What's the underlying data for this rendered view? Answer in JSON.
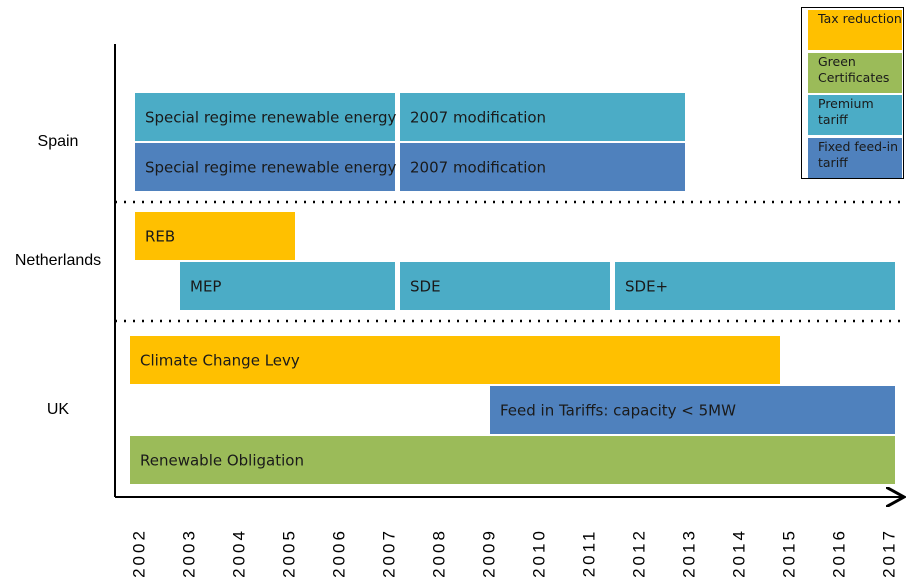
{
  "chart_data": {
    "type": "timeline",
    "series": [
      {
        "name": "Tax reduction",
        "color": "#ffc000"
      },
      {
        "name": "Green Certificates",
        "color": "#9bbb59"
      },
      {
        "name": "Premium tariff",
        "color": "#4bacc6"
      },
      {
        "name": "Fixed feed-in tariff",
        "color": "#4f81bd"
      }
    ],
    "categories": [
      {
        "name": "Spain",
        "lanes": [
          [
            {
              "label": "Special regime renewable energy",
              "series": 2,
              "start": 2001.9,
              "end": 2007.1
            },
            {
              "label": "2007 modification",
              "series": 2,
              "start": 2007.2,
              "end": 2012.9
            }
          ],
          [
            {
              "label": "Special regime renewable energy",
              "series": 3,
              "start": 2001.9,
              "end": 2007.1
            },
            {
              "label": "2007 modification",
              "series": 3,
              "start": 2007.2,
              "end": 2012.9
            }
          ]
        ]
      },
      {
        "name": "Netherlands",
        "lanes": [
          [
            {
              "label": "REB",
              "series": 0,
              "start": 2001.9,
              "end": 2005.1
            }
          ],
          [
            {
              "label": "MEP",
              "series": 2,
              "start": 2002.8,
              "end": 2007.1
            },
            {
              "label": "SDE",
              "series": 2,
              "start": 2007.2,
              "end": 2011.4
            },
            {
              "label": "SDE+",
              "series": 2,
              "start": 2011.5,
              "end": 2017.1
            }
          ]
        ]
      },
      {
        "name": "UK",
        "lanes": [
          [
            {
              "label": "Climate Change Levy",
              "series": 0,
              "start": 2001.8,
              "end": 2014.8
            }
          ],
          [
            {
              "label": "Feed in Tariffs: capacity < 5MW",
              "series": 3,
              "start": 2009.0,
              "end": 2017.1
            }
          ],
          [
            {
              "label": "Renewable Obligation",
              "series": 1,
              "start": 2001.8,
              "end": 2017.1
            }
          ]
        ]
      }
    ],
    "xlim": [
      2001.5,
      2017.3
    ],
    "xticks": [
      2002,
      2003,
      2004,
      2005,
      2006,
      2007,
      2008,
      2009,
      2010,
      2011,
      2012,
      2013,
      2014,
      2015,
      2016,
      2017
    ]
  }
}
